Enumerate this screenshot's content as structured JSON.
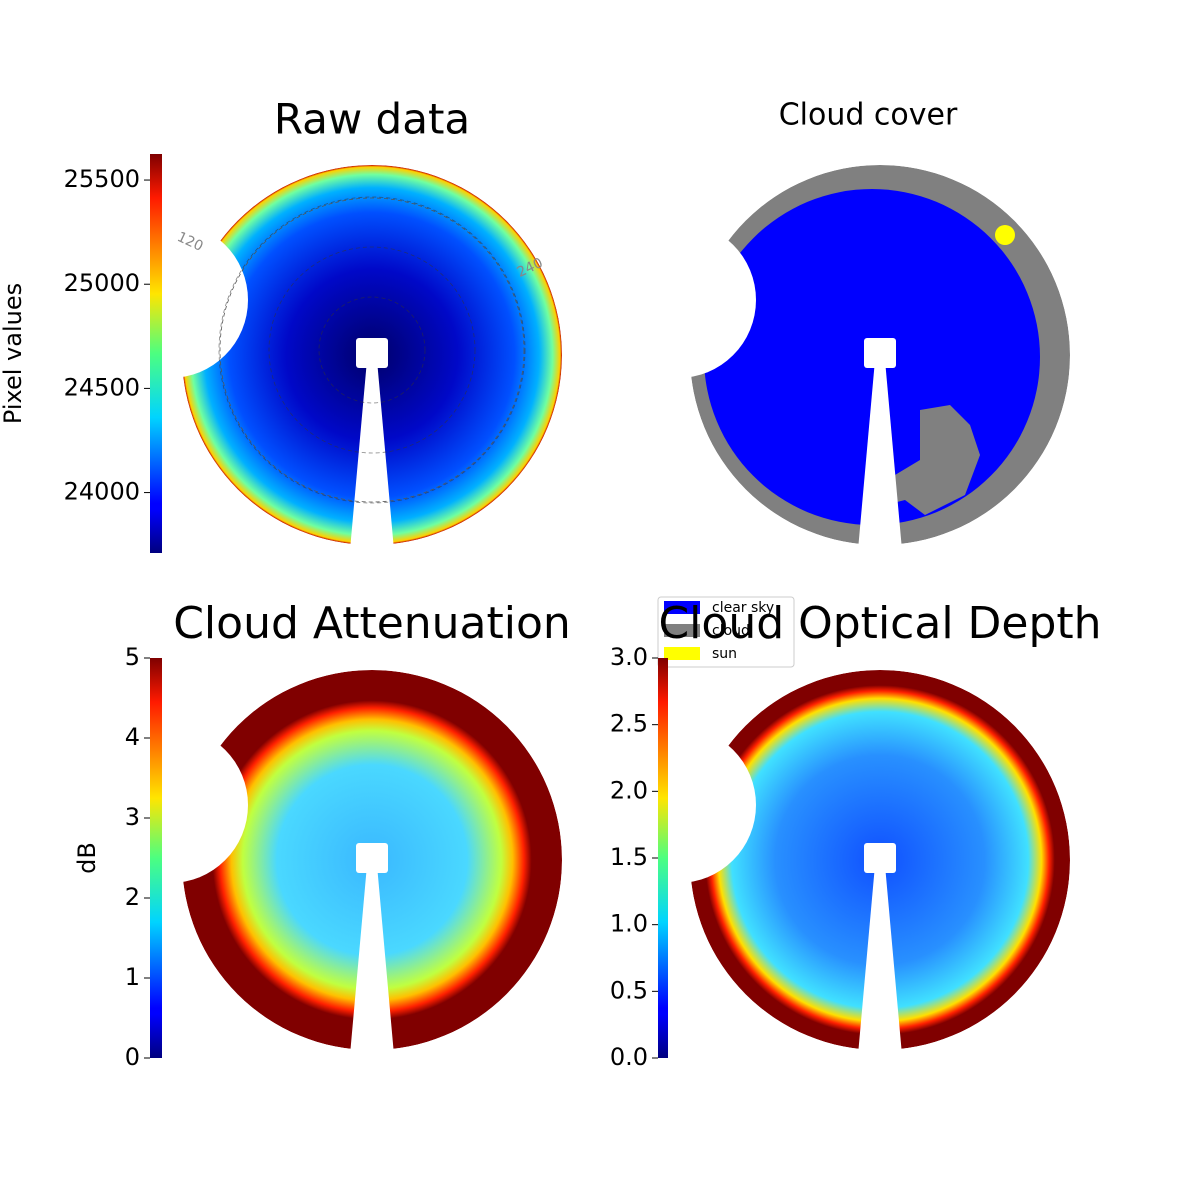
{
  "chart_data": [
    {
      "type": "image",
      "title": "Raw data",
      "colormap": "jet",
      "annotations": [
        "120",
        "240"
      ],
      "colorbar": {
        "label": "Pixel values",
        "ylim": [
          23710,
          25625
        ],
        "yticks": [
          24000,
          24500,
          25000,
          25500
        ]
      }
    },
    {
      "type": "categorical-image",
      "title": "Cloud cover",
      "legend_position": "lower center",
      "legend": [
        {
          "name": "clear sky",
          "color": "#0000ff"
        },
        {
          "name": "cloud",
          "color": "#808080"
        },
        {
          "name": "sun",
          "color": "#ffff00"
        }
      ]
    },
    {
      "type": "image",
      "title": "Cloud Attenuation",
      "colormap": "jet",
      "colorbar": {
        "label": "dB",
        "ylim": [
          0,
          5
        ],
        "yticks": [
          0,
          1,
          2,
          3,
          4,
          5
        ]
      }
    },
    {
      "type": "image",
      "title": "Cloud Optical Depth",
      "colormap": "jet",
      "colorbar": {
        "ylim": [
          0,
          3
        ],
        "yticks": [
          {
            "value": 0,
            "label": "0.0"
          },
          0.5,
          {
            "value": 1,
            "label": "1.0"
          },
          1.5,
          {
            "value": 2,
            "label": "2.0"
          },
          2.5,
          {
            "value": 3,
            "label": "3.0"
          }
        ]
      }
    }
  ]
}
